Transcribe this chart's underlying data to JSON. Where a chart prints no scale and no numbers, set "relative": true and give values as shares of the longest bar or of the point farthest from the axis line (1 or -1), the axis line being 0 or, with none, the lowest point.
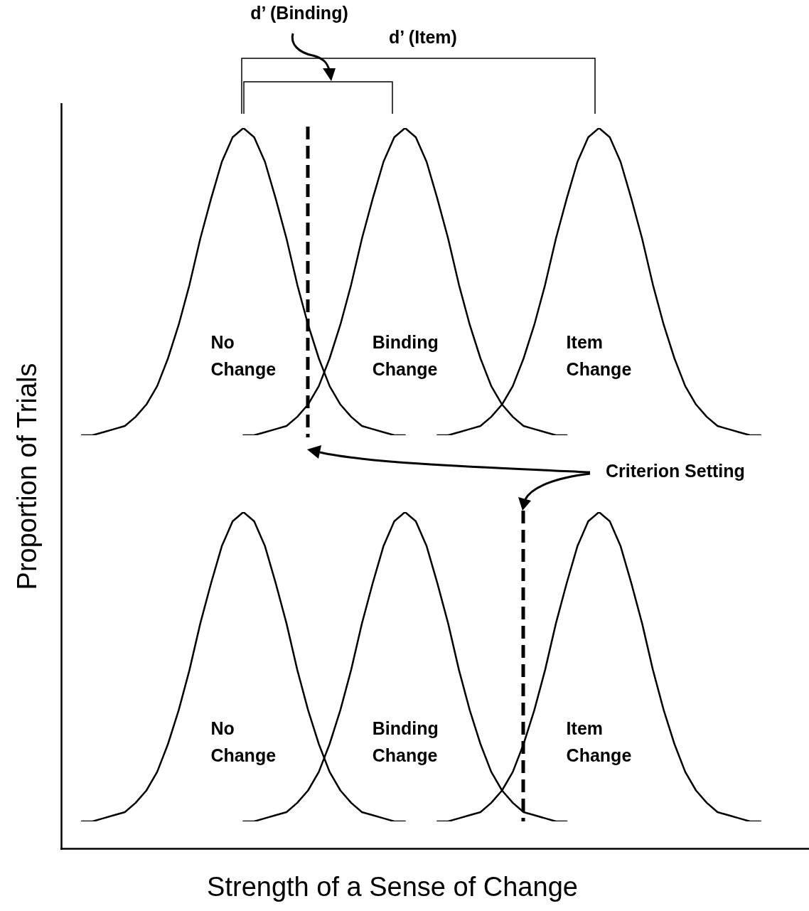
{
  "chart_data": [
    {
      "type": "line",
      "relative": true,
      "tick_labels": false,
      "marker": "none",
      "categories": [
        null,
        null,
        null,
        null,
        null,
        null,
        null,
        null,
        null,
        null,
        null,
        null,
        null,
        null,
        null,
        null,
        null,
        null,
        null,
        null,
        null,
        null,
        null,
        null,
        null,
        null,
        null,
        null,
        null,
        null,
        null,
        null,
        null,
        null,
        null,
        null,
        null,
        null,
        null,
        null,
        null,
        null,
        null,
        null,
        null,
        null,
        null,
        null,
        null,
        null,
        null,
        null,
        null,
        null,
        null,
        null,
        null,
        null,
        null,
        null,
        null,
        null,
        null,
        null
      ],
      "series": [
        {
          "name": "No Change",
          "color": "#000000",
          "values": [
            0,
            0,
            0.01,
            0.02,
            0.03,
            0.06,
            0.1,
            0.16,
            0.25,
            0.36,
            0.49,
            0.64,
            0.77,
            0.89,
            0.97,
            1,
            0.97,
            0.89,
            0.77,
            0.64,
            0.49,
            0.36,
            0.25,
            0.16,
            0.1,
            0.06,
            0.03,
            0.02,
            0.01,
            0,
            0,
            null,
            null,
            null,
            null,
            null,
            null,
            null,
            null,
            null,
            null,
            null,
            null,
            null,
            null,
            null,
            null,
            null,
            null,
            null,
            null,
            null,
            null,
            null,
            null,
            null,
            null,
            null,
            null,
            null,
            null,
            null,
            null,
            null
          ]
        },
        {
          "name": "Binding Change",
          "color": "#000000",
          "values": [
            null,
            null,
            null,
            null,
            null,
            null,
            null,
            null,
            null,
            null,
            null,
            null,
            null,
            null,
            null,
            0,
            0,
            0.01,
            0.02,
            0.03,
            0.06,
            0.1,
            0.16,
            0.25,
            0.36,
            0.49,
            0.64,
            0.77,
            0.89,
            0.97,
            1,
            0.97,
            0.89,
            0.77,
            0.64,
            0.49,
            0.36,
            0.25,
            0.16,
            0.1,
            0.06,
            0.03,
            0.02,
            0.01,
            0,
            0,
            null,
            null,
            null,
            null,
            null,
            null,
            null,
            null,
            null,
            null,
            null,
            null,
            null,
            null,
            null,
            null,
            null,
            null
          ]
        },
        {
          "name": "Item Change",
          "color": "#000000",
          "values": [
            null,
            null,
            null,
            null,
            null,
            null,
            null,
            null,
            null,
            null,
            null,
            null,
            null,
            null,
            null,
            null,
            null,
            null,
            null,
            null,
            null,
            null,
            null,
            null,
            null,
            null,
            null,
            null,
            null,
            null,
            null,
            null,
            null,
            0,
            0,
            0.01,
            0.02,
            0.03,
            0.06,
            0.1,
            0.16,
            0.25,
            0.36,
            0.49,
            0.64,
            0.77,
            0.89,
            0.97,
            1,
            0.97,
            0.89,
            0.77,
            0.64,
            0.49,
            0.36,
            0.25,
            0.16,
            0.1,
            0.06,
            0.03,
            0.02,
            0.01,
            0,
            0
          ]
        }
      ],
      "annotations": [
        "d’ (Binding)",
        "d’ (Item)",
        "Criterion Setting"
      ]
    },
    {
      "type": "line",
      "relative": true,
      "tick_labels": false,
      "marker": "none",
      "xlabel": "Strength of a Sense of Change",
      "ylabel": "Proportion of Trials",
      "categories": [
        null,
        null,
        null,
        null,
        null,
        null,
        null,
        null,
        null,
        null,
        null,
        null,
        null,
        null,
        null,
        null,
        null,
        null,
        null,
        null,
        null,
        null,
        null,
        null,
        null,
        null,
        null,
        null,
        null,
        null,
        null,
        null,
        null,
        null,
        null,
        null,
        null,
        null,
        null,
        null,
        null,
        null,
        null,
        null,
        null,
        null,
        null,
        null,
        null,
        null,
        null,
        null,
        null,
        null,
        null,
        null,
        null,
        null,
        null,
        null,
        null,
        null,
        null,
        null
      ],
      "series": [
        {
          "name": "No Change",
          "color": "#000000",
          "values": [
            0,
            0,
            0.01,
            0.02,
            0.03,
            0.06,
            0.1,
            0.16,
            0.25,
            0.36,
            0.49,
            0.64,
            0.77,
            0.89,
            0.97,
            1,
            0.97,
            0.89,
            0.77,
            0.64,
            0.49,
            0.36,
            0.25,
            0.16,
            0.1,
            0.06,
            0.03,
            0.02,
            0.01,
            0,
            0,
            null,
            null,
            null,
            null,
            null,
            null,
            null,
            null,
            null,
            null,
            null,
            null,
            null,
            null,
            null,
            null,
            null,
            null,
            null,
            null,
            null,
            null,
            null,
            null,
            null,
            null,
            null,
            null,
            null,
            null,
            null,
            null,
            null
          ]
        },
        {
          "name": "Binding Change",
          "color": "#000000",
          "values": [
            null,
            null,
            null,
            null,
            null,
            null,
            null,
            null,
            null,
            null,
            null,
            null,
            null,
            null,
            null,
            0,
            0,
            0.01,
            0.02,
            0.03,
            0.06,
            0.1,
            0.16,
            0.25,
            0.36,
            0.49,
            0.64,
            0.77,
            0.89,
            0.97,
            1,
            0.97,
            0.89,
            0.77,
            0.64,
            0.49,
            0.36,
            0.25,
            0.16,
            0.1,
            0.06,
            0.03,
            0.02,
            0.01,
            0,
            0,
            null,
            null,
            null,
            null,
            null,
            null,
            null,
            null,
            null,
            null,
            null,
            null,
            null,
            null,
            null,
            null,
            null,
            null
          ]
        },
        {
          "name": "Item Change",
          "color": "#000000",
          "values": [
            null,
            null,
            null,
            null,
            null,
            null,
            null,
            null,
            null,
            null,
            null,
            null,
            null,
            null,
            null,
            null,
            null,
            null,
            null,
            null,
            null,
            null,
            null,
            null,
            null,
            null,
            null,
            null,
            null,
            null,
            null,
            null,
            null,
            0,
            0,
            0.01,
            0.02,
            0.03,
            0.06,
            0.1,
            0.16,
            0.25,
            0.36,
            0.49,
            0.64,
            0.77,
            0.89,
            0.97,
            1,
            0.97,
            0.89,
            0.77,
            0.64,
            0.49,
            0.36,
            0.25,
            0.16,
            0.1,
            0.06,
            0.03,
            0.02,
            0.01,
            0,
            0
          ]
        }
      ]
    }
  ]
}
